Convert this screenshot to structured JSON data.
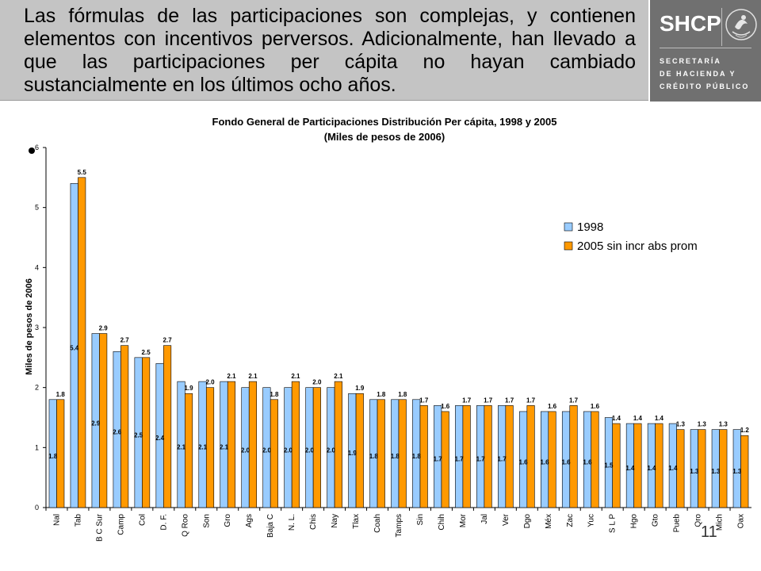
{
  "header": {
    "text": "Las fórmulas de las participaciones son complejas, y contienen elementos con incentivos perversos.  Adicionalmente, han llevado a que las participaciones per cápita no hayan cambiado sustancialmente en los últimos ocho años.",
    "logo_word": "SHCP",
    "logo_lines": [
      "SECRETARÍA",
      "DE HACIENDA Y",
      "CRÉDITO PÚBLICO"
    ]
  },
  "page_number": "11",
  "colors": {
    "series_1998": "#99ccff",
    "series_2005": "#ff9900",
    "header_bg": "#c4c4c4",
    "logo_bg": "#707070"
  },
  "chart_data": {
    "type": "bar",
    "title": "Fondo General de Participaciones Distribución Per cápita, 1998 y 2005",
    "subtitle": "(Miles de pesos de 2006)",
    "xlabel": "",
    "ylabel": "Miles de pesos de 2006",
    "ylim": [
      0,
      6
    ],
    "yticks": [
      0,
      1,
      2,
      3,
      4,
      5,
      6
    ],
    "grid": false,
    "legend_position": "right",
    "categories": [
      "Nal",
      "Tab",
      "B C Sur",
      "Camp",
      "Col",
      "D. F.",
      "Q Roo",
      "Son",
      "Gro",
      "Ags",
      "Baja C",
      "N. L.",
      "Chis",
      "Nay",
      "Tlax",
      "Coah",
      "Tamps",
      "Sin",
      "Chih",
      "Mor",
      "Jal",
      "Ver",
      "Dgo",
      "Méx",
      "Zac",
      "Yuc",
      "S L P",
      "Hgo",
      "Gto",
      "Pueb",
      "Qro",
      "Mich",
      "Oax"
    ],
    "series": [
      {
        "name": "1998",
        "values": [
          1.8,
          5.4,
          2.9,
          2.6,
          2.5,
          2.4,
          2.1,
          2.1,
          2.1,
          2.0,
          2.0,
          2.0,
          2.0,
          2.0,
          1.9,
          1.8,
          1.8,
          1.8,
          1.7,
          1.7,
          1.7,
          1.7,
          1.6,
          1.6,
          1.6,
          1.6,
          1.5,
          1.4,
          1.4,
          1.4,
          1.3,
          1.3,
          1.3
        ],
        "labels": [
          "1.8",
          "5.4",
          "2.9",
          "2.6",
          "2.5",
          "2.4",
          "2.1",
          "2.1",
          "2.1",
          "2.0",
          "2.0",
          "2.0",
          "2.0",
          "2.0",
          "1.9",
          "1.8",
          "1.8",
          "1.8",
          "1.7",
          "1.7",
          "1.7",
          "1.7",
          "1.6",
          "1.6",
          "1.6",
          "1.6",
          "1.5",
          "1.4",
          "1.4",
          "1.4",
          "1.3",
          "1.3",
          "1.3"
        ]
      },
      {
        "name": "2005 sin incr abs prom",
        "values": [
          1.8,
          5.5,
          2.9,
          2.7,
          2.5,
          2.7,
          1.9,
          2.0,
          2.1,
          2.1,
          1.8,
          2.1,
          2.0,
          2.1,
          1.9,
          1.8,
          1.8,
          1.7,
          1.6,
          1.7,
          1.7,
          1.7,
          1.7,
          1.6,
          1.7,
          1.6,
          1.4,
          1.4,
          1.4,
          1.3,
          1.3,
          1.3,
          1.2
        ],
        "labels": [
          "1.8",
          "5.5",
          "2.9",
          "2.7",
          "2.5",
          "2.7",
          "1.9",
          "2.0",
          "2.1",
          "2.1",
          "1.8",
          "2.1",
          "2.0",
          "2.1",
          "1.9",
          "1.8",
          "1.8",
          "1.7",
          "1.6",
          "1.7",
          "1.7",
          "1.7",
          "1.7",
          "1.6",
          "1.7",
          "1.6",
          "1.4",
          "1.4",
          "1.4",
          "1.3",
          "1.3",
          "1.3",
          "1.2"
        ]
      }
    ]
  }
}
